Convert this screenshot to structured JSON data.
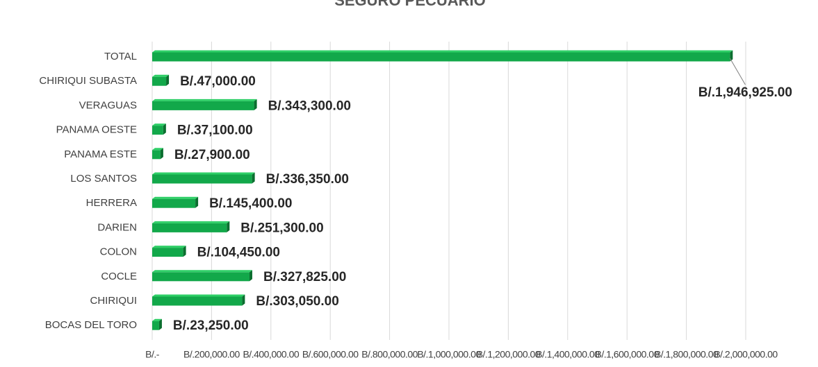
{
  "chart_data": {
    "type": "hbar",
    "title": "SEGURO PECUARIO",
    "categories": [
      "TOTAL",
      "CHIRIQUI SUBASTA",
      "VERAGUAS",
      "PANAMA OESTE",
      "PANAMA ESTE",
      "LOS SANTOS",
      "HERRERA",
      "DARIEN",
      "COLON",
      "COCLE",
      "CHIRIQUI",
      "BOCAS DEL TORO"
    ],
    "values": [
      1946925,
      47000,
      343300,
      37100,
      27900,
      336350,
      145400,
      251300,
      104450,
      327825,
      303050,
      23250
    ],
    "value_labels": [
      "B/.1,946,925.00",
      "B/.47,000.00",
      "B/.343,300.00",
      "B/.37,100.00",
      "B/.27,900.00",
      "B/.336,350.00",
      "B/.145,400.00",
      "B/.251,300.00",
      "B/.104,450.00",
      "B/.327,825.00",
      "B/.303,050.00",
      "B/.23,250.00"
    ],
    "color": "#12a84a",
    "xlim": [
      0,
      2000000
    ],
    "xticks": [
      {
        "value": 0,
        "label": "B/.-"
      },
      {
        "value": 200000,
        "label": "B/.200,000.00"
      },
      {
        "value": 400000,
        "label": "B/.400,000.00"
      },
      {
        "value": 600000,
        "label": "B/.600,000.00"
      },
      {
        "value": 800000,
        "label": "B/.800,000.00"
      },
      {
        "value": 1000000,
        "label": "B/.1,000,000.00"
      },
      {
        "value": 1200000,
        "label": "B/.1,200,000.00"
      },
      {
        "value": 1400000,
        "label": "B/.1,400,000.00"
      },
      {
        "value": 1600000,
        "label": "B/.1,600,000.00"
      },
      {
        "value": 1800000,
        "label": "B/.1,800,000.00"
      },
      {
        "value": 2000000,
        "label": "B/.2,000,000.00"
      }
    ],
    "grid": true
  }
}
